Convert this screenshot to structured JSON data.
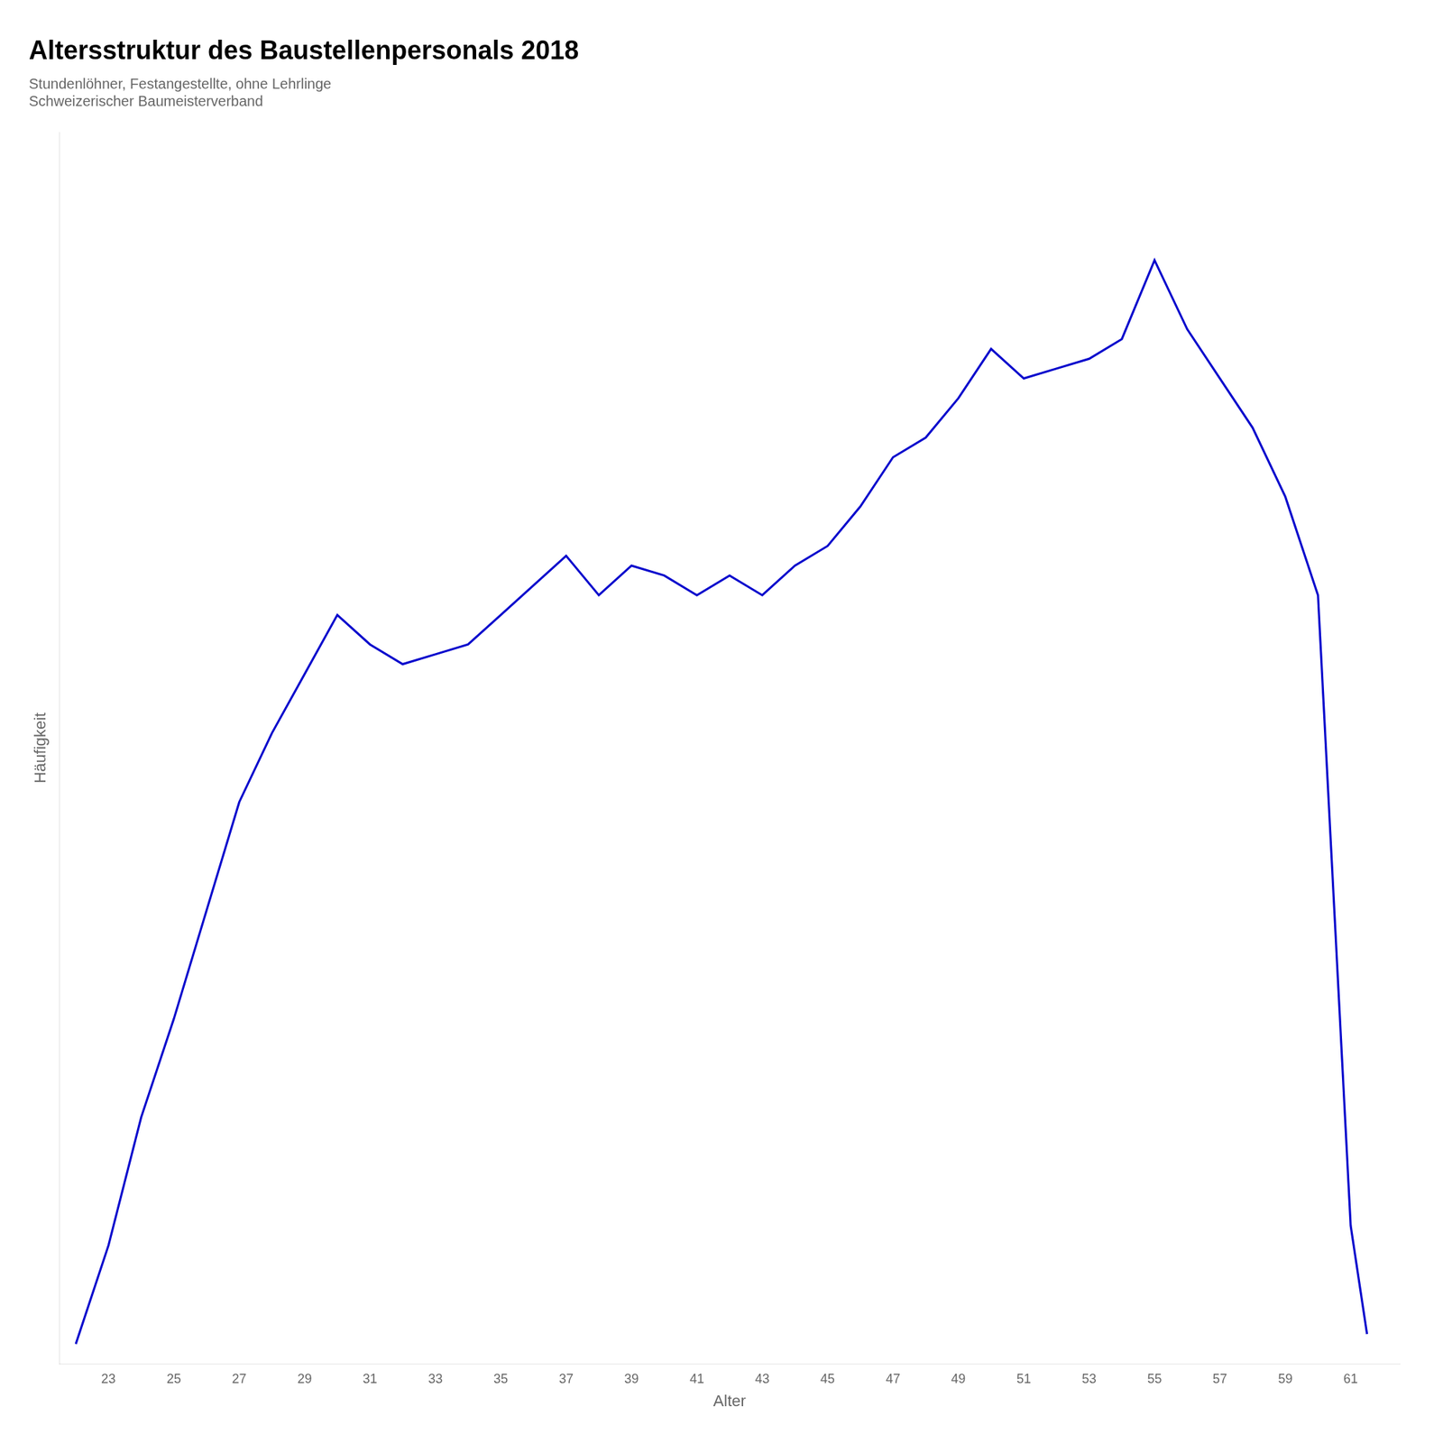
{
  "chart_data": {
    "type": "line",
    "title": "Altersstruktur des Baustellenpersonals 2018",
    "subtitle": [
      "Stundenlöhner, Festangestellte, ohne Lehrlinge",
      "Schweizerischer Baumeisterverband"
    ],
    "xlabel": "Alter",
    "ylabel": "Häufigkeit",
    "x": [
      22,
      23,
      24,
      25,
      26,
      27,
      28,
      29,
      30,
      31,
      32,
      33,
      34,
      35,
      36,
      37,
      38,
      39,
      40,
      41,
      42,
      43,
      44,
      45,
      46,
      47,
      48,
      49,
      50,
      51,
      52,
      53,
      54,
      55,
      56,
      57,
      58,
      59,
      60,
      61,
      61.5
    ],
    "values": [
      0.02,
      0.12,
      0.25,
      0.35,
      0.46,
      0.57,
      0.64,
      0.7,
      0.76,
      0.73,
      0.71,
      0.72,
      0.73,
      0.76,
      0.79,
      0.82,
      0.78,
      0.81,
      0.8,
      0.78,
      0.8,
      0.78,
      0.81,
      0.83,
      0.87,
      0.92,
      0.94,
      0.98,
      1.03,
      1.0,
      1.01,
      1.02,
      1.04,
      1.12,
      1.05,
      1.0,
      0.95,
      0.88,
      0.78,
      0.14,
      0.03
    ],
    "color": "#0000CC",
    "xlim": [
      21.5,
      62.5
    ],
    "ylim": [
      0,
      1.25
    ],
    "xticks": [
      23,
      25,
      27,
      29,
      31,
      33,
      35,
      37,
      39,
      41,
      43,
      45,
      47,
      49,
      51,
      53,
      55,
      57,
      59,
      61
    ],
    "yticks": [],
    "grid": false,
    "tick_labels": "x"
  }
}
